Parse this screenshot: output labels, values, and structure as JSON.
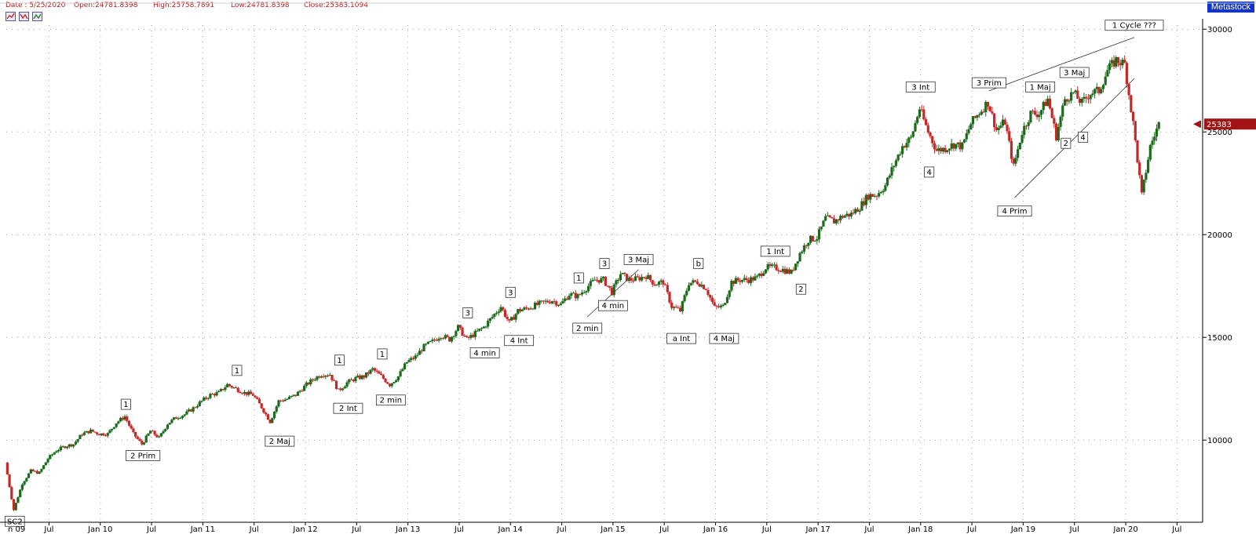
{
  "header": {
    "date_text": "Date : 5/25/2020",
    "open_text": "Open:24781.8398",
    "high_text": "High:25758.7891",
    "low_text": "Low:24781.8398",
    "close_text": "Close:25383.1094",
    "brand": "Metastock"
  },
  "chart_data": {
    "type": "candlestick",
    "title": "",
    "x_tick_labels": [
      "n 09",
      "Jul",
      "Jan 10",
      "Jul",
      "Jan 11",
      "Jul",
      "Jan 12",
      "Jul",
      "Jan 13",
      "Jul",
      "Jan 14",
      "Jul",
      "Jan 15",
      "Jul",
      "Jan 16",
      "Jul",
      "Jan 17",
      "Jul",
      "Jan 18",
      "Jul",
      "Jan 19",
      "Jul",
      "Jan 20",
      "Jul"
    ],
    "y_ticks": [
      10000,
      15000,
      20000,
      25000,
      30000
    ],
    "ylim": [
      6000,
      30200
    ],
    "x_range": [
      "2009-02",
      "2020-10"
    ],
    "grid": true,
    "last_close_label": "25383",
    "colors": {
      "up": "#1b6b1b",
      "down": "#c62828",
      "price_tag": "#a31515"
    },
    "series": [
      {
        "t": "2009-02",
        "v": 8900
      },
      {
        "t": "2009-03",
        "v": 6600
      },
      {
        "t": "2009-04",
        "v": 7900
      },
      {
        "t": "2009-05",
        "v": 8500
      },
      {
        "t": "2009-06",
        "v": 8400
      },
      {
        "t": "2009-07",
        "v": 9100
      },
      {
        "t": "2009-08",
        "v": 9500
      },
      {
        "t": "2009-09",
        "v": 9700
      },
      {
        "t": "2009-10",
        "v": 9800
      },
      {
        "t": "2009-11",
        "v": 10300
      },
      {
        "t": "2009-12",
        "v": 10450
      },
      {
        "t": "2010-01",
        "v": 10300
      },
      {
        "t": "2010-02",
        "v": 10300
      },
      {
        "t": "2010-03",
        "v": 10850
      },
      {
        "t": "2010-04",
        "v": 11150
      },
      {
        "t": "2010-05",
        "v": 10300
      },
      {
        "t": "2010-06",
        "v": 9800
      },
      {
        "t": "2010-07",
        "v": 10450
      },
      {
        "t": "2010-08",
        "v": 10100
      },
      {
        "t": "2010-09",
        "v": 10800
      },
      {
        "t": "2010-10",
        "v": 11100
      },
      {
        "t": "2010-11",
        "v": 11250
      },
      {
        "t": "2010-12",
        "v": 11550
      },
      {
        "t": "2011-01",
        "v": 11900
      },
      {
        "t": "2011-02",
        "v": 12200
      },
      {
        "t": "2011-03",
        "v": 12300
      },
      {
        "t": "2011-04",
        "v": 12700
      },
      {
        "t": "2011-05",
        "v": 12500
      },
      {
        "t": "2011-06",
        "v": 12300
      },
      {
        "t": "2011-07",
        "v": 12200
      },
      {
        "t": "2011-08",
        "v": 11600
      },
      {
        "t": "2011-09",
        "v": 10900
      },
      {
        "t": "2011-10",
        "v": 11900
      },
      {
        "t": "2011-11",
        "v": 12000
      },
      {
        "t": "2011-12",
        "v": 12200
      },
      {
        "t": "2012-01",
        "v": 12600
      },
      {
        "t": "2012-02",
        "v": 12950
      },
      {
        "t": "2012-03",
        "v": 13200
      },
      {
        "t": "2012-04",
        "v": 13200
      },
      {
        "t": "2012-05",
        "v": 12400
      },
      {
        "t": "2012-06",
        "v": 12800
      },
      {
        "t": "2012-07",
        "v": 13000
      },
      {
        "t": "2012-08",
        "v": 13100
      },
      {
        "t": "2012-09",
        "v": 13450
      },
      {
        "t": "2012-10",
        "v": 13100
      },
      {
        "t": "2012-11",
        "v": 12700
      },
      {
        "t": "2012-12",
        "v": 13100
      },
      {
        "t": "2013-01",
        "v": 13800
      },
      {
        "t": "2013-02",
        "v": 14050
      },
      {
        "t": "2013-03",
        "v": 14550
      },
      {
        "t": "2013-04",
        "v": 14800
      },
      {
        "t": "2013-05",
        "v": 15100
      },
      {
        "t": "2013-06",
        "v": 14900
      },
      {
        "t": "2013-07",
        "v": 15500
      },
      {
        "t": "2013-08",
        "v": 14900
      },
      {
        "t": "2013-09",
        "v": 15200
      },
      {
        "t": "2013-10",
        "v": 15500
      },
      {
        "t": "2013-11",
        "v": 16000
      },
      {
        "t": "2013-12",
        "v": 16500
      },
      {
        "t": "2014-01",
        "v": 15700
      },
      {
        "t": "2014-02",
        "v": 16300
      },
      {
        "t": "2014-03",
        "v": 16400
      },
      {
        "t": "2014-04",
        "v": 16550
      },
      {
        "t": "2014-05",
        "v": 16700
      },
      {
        "t": "2014-06",
        "v": 16800
      },
      {
        "t": "2014-07",
        "v": 16600
      },
      {
        "t": "2014-08",
        "v": 17100
      },
      {
        "t": "2014-09",
        "v": 17000
      },
      {
        "t": "2014-10",
        "v": 17400
      },
      {
        "t": "2014-11",
        "v": 17800
      },
      {
        "t": "2014-12",
        "v": 17800
      },
      {
        "t": "2015-01",
        "v": 17200
      },
      {
        "t": "2015-02",
        "v": 18100
      },
      {
        "t": "2015-03",
        "v": 17800
      },
      {
        "t": "2015-04",
        "v": 17850
      },
      {
        "t": "2015-05",
        "v": 18000
      },
      {
        "t": "2015-06",
        "v": 17600
      },
      {
        "t": "2015-07",
        "v": 17700
      },
      {
        "t": "2015-08",
        "v": 16500
      },
      {
        "t": "2015-09",
        "v": 16300
      },
      {
        "t": "2015-10",
        "v": 17650
      },
      {
        "t": "2015-11",
        "v": 17700
      },
      {
        "t": "2015-12",
        "v": 17400
      },
      {
        "t": "2016-01",
        "v": 16450
      },
      {
        "t": "2016-02",
        "v": 16500
      },
      {
        "t": "2016-03",
        "v": 17700
      },
      {
        "t": "2016-04",
        "v": 17800
      },
      {
        "t": "2016-05",
        "v": 17800
      },
      {
        "t": "2016-06",
        "v": 17900
      },
      {
        "t": "2016-07",
        "v": 18400
      },
      {
        "t": "2016-08",
        "v": 18400
      },
      {
        "t": "2016-09",
        "v": 18300
      },
      {
        "t": "2016-10",
        "v": 18150
      },
      {
        "t": "2016-11",
        "v": 19100
      },
      {
        "t": "2016-12",
        "v": 19750
      },
      {
        "t": "2017-01",
        "v": 19850
      },
      {
        "t": "2017-02",
        "v": 20800
      },
      {
        "t": "2017-03",
        "v": 20650
      },
      {
        "t": "2017-04",
        "v": 20900
      },
      {
        "t": "2017-05",
        "v": 21000
      },
      {
        "t": "2017-06",
        "v": 21350
      },
      {
        "t": "2017-07",
        "v": 21900
      },
      {
        "t": "2017-08",
        "v": 21950
      },
      {
        "t": "2017-09",
        "v": 22400
      },
      {
        "t": "2017-10",
        "v": 23400
      },
      {
        "t": "2017-11",
        "v": 24300
      },
      {
        "t": "2017-12",
        "v": 24700
      },
      {
        "t": "2018-01",
        "v": 26150
      },
      {
        "t": "2018-02",
        "v": 25000
      },
      {
        "t": "2018-03",
        "v": 24100
      },
      {
        "t": "2018-04",
        "v": 24200
      },
      {
        "t": "2018-05",
        "v": 24400
      },
      {
        "t": "2018-06",
        "v": 24300
      },
      {
        "t": "2018-07",
        "v": 25400
      },
      {
        "t": "2018-08",
        "v": 25950
      },
      {
        "t": "2018-09",
        "v": 26450
      },
      {
        "t": "2018-10",
        "v": 25100
      },
      {
        "t": "2018-11",
        "v": 25500
      },
      {
        "t": "2018-12",
        "v": 23300
      },
      {
        "t": "2019-01",
        "v": 25000
      },
      {
        "t": "2019-02",
        "v": 25900
      },
      {
        "t": "2019-03",
        "v": 25900
      },
      {
        "t": "2019-04",
        "v": 26600
      },
      {
        "t": "2019-05",
        "v": 24800
      },
      {
        "t": "2019-06",
        "v": 26600
      },
      {
        "t": "2019-07",
        "v": 26900
      },
      {
        "t": "2019-08",
        "v": 26400
      },
      {
        "t": "2019-09",
        "v": 26900
      },
      {
        "t": "2019-10",
        "v": 27000
      },
      {
        "t": "2019-11",
        "v": 28000
      },
      {
        "t": "2019-12",
        "v": 28500
      },
      {
        "t": "2020-01",
        "v": 28300
      },
      {
        "t": "2020-02",
        "v": 25400
      },
      {
        "t": "2020-03",
        "v": 21900
      },
      {
        "t": "2020-04",
        "v": 24300
      },
      {
        "t": "2020-05",
        "v": 25383
      }
    ],
    "annotations": [
      {
        "text": "SC2",
        "t": "2009-03",
        "v": 6600,
        "pos": "below"
      },
      {
        "text": "1",
        "t": "2010-04",
        "v": 11150,
        "pos": "above"
      },
      {
        "text": "2 Prim",
        "t": "2010-06",
        "v": 9800,
        "pos": "below"
      },
      {
        "text": "1",
        "t": "2011-05",
        "v": 12800,
        "pos": "above"
      },
      {
        "text": "2 Maj",
        "t": "2011-10",
        "v": 10500,
        "pos": "below"
      },
      {
        "text": "1",
        "t": "2012-05",
        "v": 13300,
        "pos": "above"
      },
      {
        "text": "2 Int",
        "t": "2012-06",
        "v": 12100,
        "pos": "below"
      },
      {
        "text": "1",
        "t": "2012-10",
        "v": 13600,
        "pos": "above"
      },
      {
        "text": "2 min",
        "t": "2012-11",
        "v": 12500,
        "pos": "below"
      },
      {
        "text": "3",
        "t": "2013-08",
        "v": 15600,
        "pos": "above"
      },
      {
        "text": "4 min",
        "t": "2013-10",
        "v": 14800,
        "pos": "below"
      },
      {
        "text": "3",
        "t": "2014-01",
        "v": 16600,
        "pos": "above"
      },
      {
        "text": "4 Int",
        "t": "2014-02",
        "v": 15400,
        "pos": "below"
      },
      {
        "text": "1",
        "t": "2014-09",
        "v": 17300,
        "pos": "above"
      },
      {
        "text": "2 min",
        "t": "2014-10",
        "v": 16000,
        "pos": "below"
      },
      {
        "text": "3",
        "t": "2014-12",
        "v": 18000,
        "pos": "above"
      },
      {
        "text": "4 min",
        "t": "2015-01",
        "v": 17100,
        "pos": "below"
      },
      {
        "text": "3 Maj",
        "t": "2015-04",
        "v": 18200,
        "pos": "above"
      },
      {
        "text": "a Int",
        "t": "2015-09",
        "v": 15500,
        "pos": "below"
      },
      {
        "text": "b",
        "t": "2015-11",
        "v": 18000,
        "pos": "above"
      },
      {
        "text": "4 Maj",
        "t": "2016-02",
        "v": 15500,
        "pos": "below"
      },
      {
        "text": "1 Int",
        "t": "2016-08",
        "v": 18600,
        "pos": "above"
      },
      {
        "text": "2",
        "t": "2016-11",
        "v": 17900,
        "pos": "below"
      },
      {
        "text": "3 Int",
        "t": "2018-01",
        "v": 26600,
        "pos": "above"
      },
      {
        "text": "4",
        "t": "2018-02",
        "v": 23600,
        "pos": "below"
      },
      {
        "text": "3 Prim",
        "t": "2018-09",
        "v": 26800,
        "pos": "above"
      },
      {
        "text": "4 Prim",
        "t": "2018-12",
        "v": 21700,
        "pos": "below"
      },
      {
        "text": "1 Maj",
        "t": "2019-03",
        "v": 26600,
        "pos": "above"
      },
      {
        "text": "3 Maj",
        "t": "2019-07",
        "v": 27300,
        "pos": "above"
      },
      {
        "text": "2",
        "t": "2019-06",
        "v": 25000,
        "pos": "below"
      },
      {
        "text": "4",
        "t": "2019-08",
        "v": 25300,
        "pos": "below"
      },
      {
        "text": "1 Cycle ???",
        "t": "2020-02",
        "v": 29600,
        "pos": "above"
      }
    ],
    "trendlines": [
      [
        {
          "t": "2014-10",
          "v": 16000
        },
        {
          "t": "2015-04",
          "v": 18300
        }
      ],
      [
        {
          "t": "2018-09",
          "v": 27000
        },
        {
          "t": "2020-02",
          "v": 29600
        }
      ],
      [
        {
          "t": "2018-12",
          "v": 21800
        },
        {
          "t": "2020-02",
          "v": 27600
        }
      ]
    ]
  }
}
